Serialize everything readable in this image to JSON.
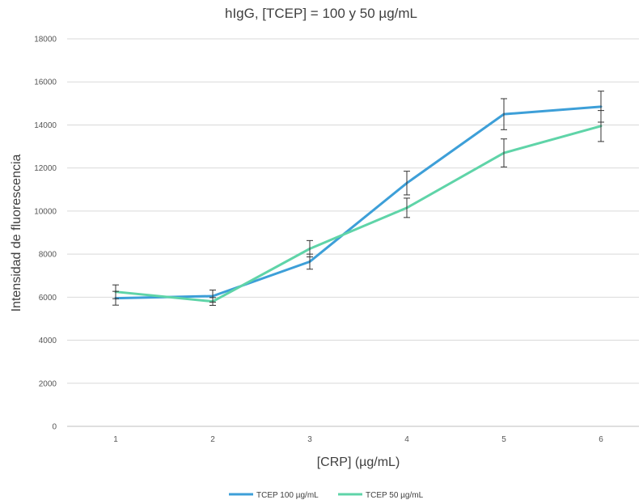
{
  "chart_data": {
    "type": "line",
    "title": "hIgG, [TCEP] = 100 y 50 µg/mL",
    "xlabel": "[CRP] (µg/mL)",
    "ylabel": "Intensidad de fluorescencia",
    "categories": [
      "1",
      "2",
      "3",
      "4",
      "5",
      "6"
    ],
    "ylim": [
      0,
      18000
    ],
    "yticks": [
      "0",
      "2000",
      "4000",
      "6000",
      "8000",
      "10000",
      "12000",
      "14000",
      "16000",
      "18000"
    ],
    "grid": true,
    "legend_position": "bottom",
    "series": [
      {
        "name": "TCEP 100 µg/mL",
        "color": "#3d9fd8",
        "values": [
          5950,
          6050,
          7650,
          11300,
          14500,
          14850
        ],
        "errors": [
          320,
          280,
          350,
          550,
          720,
          720
        ]
      },
      {
        "name": "TCEP 50 µg/mL",
        "color": "#5fd4a8",
        "values": [
          6250,
          5800,
          8250,
          10150,
          12700,
          13950
        ],
        "errors": [
          320,
          180,
          380,
          450,
          650,
          720
        ]
      }
    ]
  }
}
